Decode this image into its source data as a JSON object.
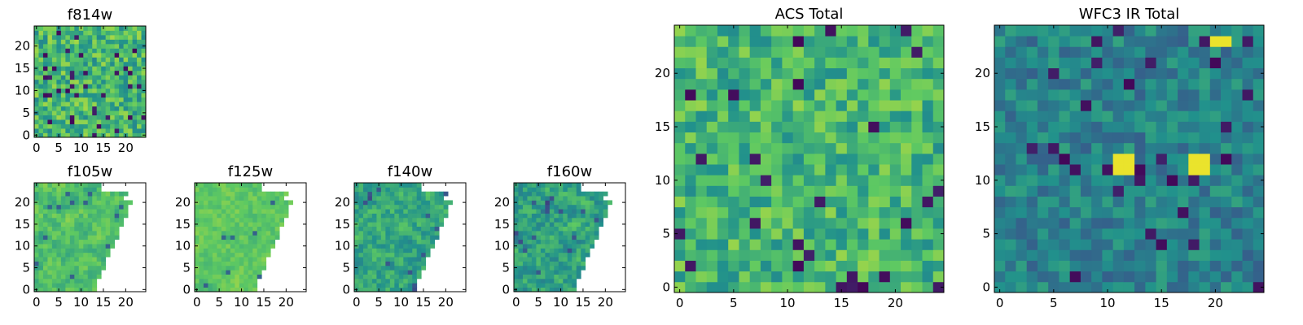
{
  "chart_data": {
    "type": "heatmap",
    "colormap": [
      "#440154",
      "#3b528b",
      "#21918c",
      "#5ec962",
      "#fde725"
    ],
    "panels": [
      {
        "id": "f814w",
        "title": "f814w",
        "grid_size": 25,
        "xlim": [
          0,
          25
        ],
        "ylim": [
          0,
          25
        ],
        "xticks": [
          0,
          5,
          10,
          15,
          20
        ],
        "yticks": [
          0,
          5,
          10,
          15,
          20
        ],
        "seed": 814,
        "mean": 0.66,
        "spread": 0.2,
        "dark_fraction": 0.05,
        "smooth": 0,
        "coverage": "full"
      },
      {
        "id": "f105w",
        "title": "f105w",
        "grid_size": 25,
        "xlim": [
          0,
          25
        ],
        "ylim": [
          0,
          25
        ],
        "xticks": [
          0,
          5,
          10,
          15,
          20
        ],
        "yticks": [
          0,
          5,
          10,
          15,
          20
        ],
        "seed": 105,
        "mean": 0.7,
        "spread": 0.16,
        "dark_fraction": 0.02,
        "smooth": 1,
        "coverage": "partial"
      },
      {
        "id": "f125w",
        "title": "f125w",
        "grid_size": 25,
        "xlim": [
          0,
          25
        ],
        "ylim": [
          0,
          25
        ],
        "xticks": [
          0,
          5,
          10,
          15,
          20
        ],
        "yticks": [
          0,
          5,
          10,
          15,
          20
        ],
        "seed": 125,
        "mean": 0.74,
        "spread": 0.12,
        "dark_fraction": 0.015,
        "smooth": 1,
        "coverage": "partial"
      },
      {
        "id": "f140w",
        "title": "f140w",
        "grid_size": 25,
        "xlim": [
          0,
          25
        ],
        "ylim": [
          0,
          25
        ],
        "xticks": [
          0,
          5,
          10,
          15,
          20
        ],
        "yticks": [
          0,
          5,
          10,
          15,
          20
        ],
        "seed": 140,
        "mean": 0.6,
        "spread": 0.2,
        "dark_fraction": 0.02,
        "smooth": 1,
        "coverage": "partial"
      },
      {
        "id": "f160w",
        "title": "f160w",
        "grid_size": 25,
        "xlim": [
          0,
          25
        ],
        "ylim": [
          0,
          25
        ],
        "xticks": [
          0,
          5,
          10,
          15,
          20
        ],
        "yticks": [
          0,
          5,
          10,
          15,
          20
        ],
        "seed": 160,
        "mean": 0.58,
        "spread": 0.22,
        "dark_fraction": 0.03,
        "smooth": 1,
        "coverage": "partial"
      },
      {
        "id": "acs-total",
        "title": "ACS Total",
        "grid_size": 25,
        "xlim": [
          0,
          25
        ],
        "ylim": [
          0,
          25
        ],
        "xticks": [
          0,
          5,
          10,
          15,
          20
        ],
        "yticks": [
          0,
          5,
          10,
          15,
          20
        ],
        "seed": 7001,
        "mean": 0.66,
        "spread": 0.18,
        "dark_fraction": 0.035,
        "smooth": 0,
        "coverage": "full"
      },
      {
        "id": "wfc3-ir-total",
        "title": "WFC3 IR Total",
        "grid_size": 25,
        "xlim": [
          0,
          25
        ],
        "ylim": [
          0,
          25
        ],
        "xticks": [
          0,
          5,
          10,
          15,
          20
        ],
        "yticks": [
          0,
          5,
          10,
          15,
          20
        ],
        "seed": 9002,
        "mean": 0.44,
        "spread": 0.14,
        "dark_fraction": 0.04,
        "smooth": 0,
        "coverage": "full",
        "bright_cells": [
          [
            11,
            11
          ],
          [
            11,
            12
          ],
          [
            12,
            11
          ],
          [
            12,
            12
          ],
          [
            18,
            11
          ],
          [
            18,
            12
          ],
          [
            19,
            11
          ],
          [
            19,
            12
          ],
          [
            20,
            23
          ],
          [
            21,
            23
          ]
        ]
      }
    ]
  }
}
